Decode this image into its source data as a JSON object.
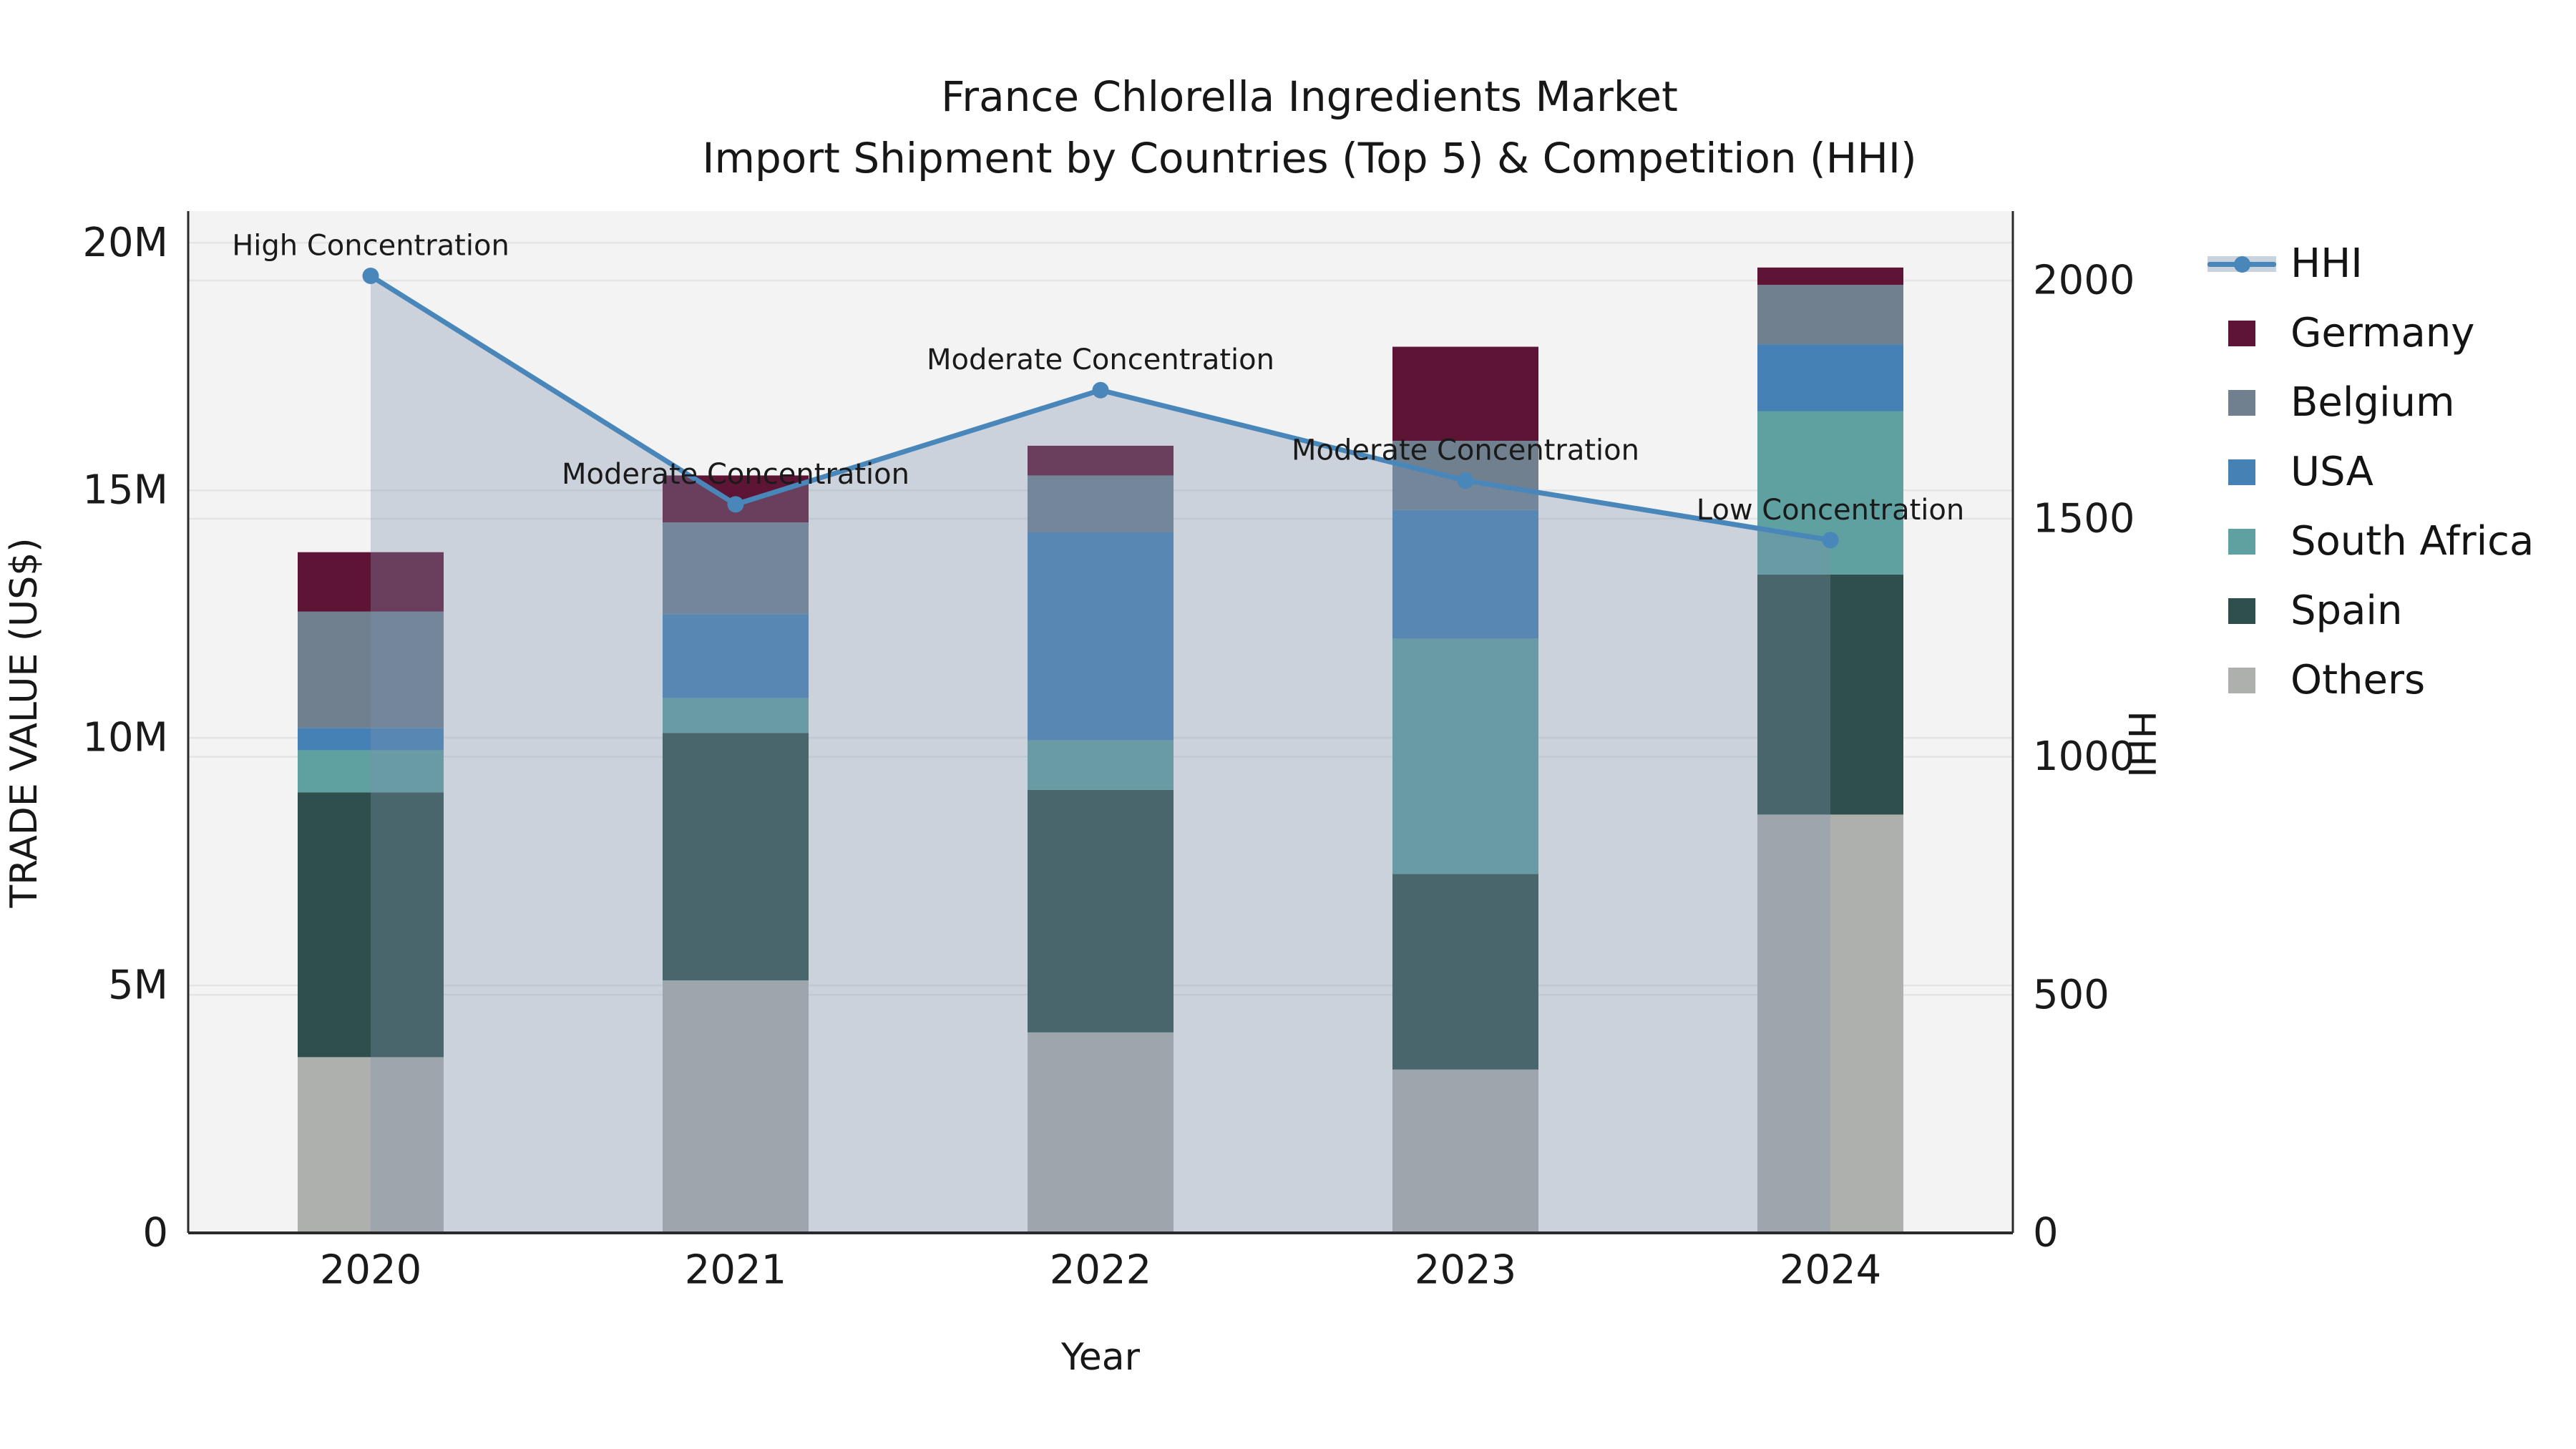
{
  "title": {
    "line1": "France Chlorella Ingredients Market",
    "line2": "Import Shipment by Countries (Top 5) & Competition (HHI)"
  },
  "axes": {
    "x_label": "Year",
    "y_left_label": "TRADE VALUE (US$)",
    "y_right_label": "HHI",
    "y_left_ticks": [
      "0",
      "5M",
      "10M",
      "15M",
      "20M"
    ],
    "y_left_tick_values": [
      0,
      5,
      10,
      15,
      20
    ],
    "y_right_ticks": [
      "0",
      "500",
      "1000",
      "1500",
      "2000"
    ],
    "y_right_tick_values": [
      0,
      500,
      1000,
      1500,
      2000
    ]
  },
  "chart_data": {
    "type": "bar+line",
    "categories": [
      "2020",
      "2021",
      "2022",
      "2023",
      "2024"
    ],
    "bar_unit": "million US$",
    "stack_order_note": "series listed bottom to top of stack",
    "series": [
      {
        "name": "Others",
        "color": "#adb0ad",
        "values": [
          3.55,
          5.1,
          4.05,
          3.3,
          8.45
        ]
      },
      {
        "name": "Spain",
        "color": "#2f4f4d",
        "values": [
          5.35,
          5.0,
          4.9,
          3.95,
          4.85
        ]
      },
      {
        "name": "South Africa",
        "color": "#5fa0a0",
        "values": [
          0.85,
          0.7,
          1.0,
          4.75,
          3.3
        ]
      },
      {
        "name": "USA",
        "color": "#4681b6",
        "values": [
          0.45,
          1.7,
          4.2,
          2.6,
          1.35
        ]
      },
      {
        "name": "Belgium",
        "color": "#70808f",
        "values": [
          2.35,
          1.85,
          1.15,
          1.4,
          1.2
        ]
      },
      {
        "name": "Germany",
        "color": "#5e1434",
        "values": [
          1.2,
          0.95,
          0.6,
          1.9,
          0.35
        ]
      }
    ],
    "bar_totals": [
      13.75,
      15.3,
      15.9,
      17.9,
      19.5
    ],
    "line": {
      "name": "HHI",
      "color": "#4987ba",
      "fill_color": "#7f94ac",
      "fill_opacity": 0.34,
      "values": [
        2010,
        1530,
        1770,
        1580,
        1455
      ]
    },
    "annotations": [
      "High Concentration",
      "Moderate Concentration",
      "Moderate Concentration",
      "Moderate Concentration",
      "Low Concentration"
    ],
    "ylim_left": [
      0,
      20.64
    ],
    "ylim_right": [
      0,
      2146
    ],
    "grid": true,
    "legend_position": "right"
  },
  "legend": {
    "items": [
      {
        "label": "HHI",
        "type": "line",
        "color": "#4987ba",
        "band": "#c9d3dd"
      },
      {
        "label": "Germany",
        "type": "patch",
        "color": "#5e1434"
      },
      {
        "label": "Belgium",
        "type": "patch",
        "color": "#70808f"
      },
      {
        "label": "USA",
        "type": "patch",
        "color": "#4681b6"
      },
      {
        "label": "South Africa",
        "type": "patch",
        "color": "#5fa0a0"
      },
      {
        "label": "Spain",
        "type": "patch",
        "color": "#2f4f4d"
      },
      {
        "label": "Others",
        "type": "patch",
        "color": "#adb0ad"
      }
    ]
  },
  "colors": {
    "plot_background": "#f3f3f3",
    "page_background": "#ffffff",
    "gridline": "#e4e4e4",
    "spine": "#2a2a2a",
    "tick_text": "#1a1a1a"
  }
}
